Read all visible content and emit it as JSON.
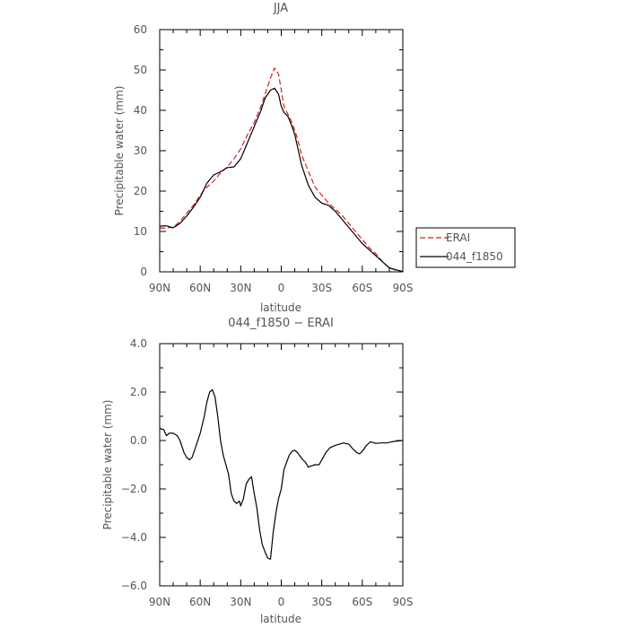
{
  "chart_data": [
    {
      "type": "line",
      "title": "JJA",
      "xlabel": "latitude",
      "ylabel": "Precipitable water (mm)",
      "xlim": [
        90,
        -90
      ],
      "ylim": [
        0,
        60
      ],
      "xticks": [
        {
          "value": 90,
          "label": "90N"
        },
        {
          "value": 60,
          "label": "60N"
        },
        {
          "value": 30,
          "label": "30N"
        },
        {
          "value": 0,
          "label": "0"
        },
        {
          "value": -30,
          "label": "30S"
        },
        {
          "value": -60,
          "label": "60S"
        },
        {
          "value": -90,
          "label": "90S"
        }
      ],
      "yticks": [
        {
          "value": 0,
          "label": "0"
        },
        {
          "value": 10,
          "label": "10"
        },
        {
          "value": 20,
          "label": "20"
        },
        {
          "value": 30,
          "label": "30"
        },
        {
          "value": 40,
          "label": "40"
        },
        {
          "value": 50,
          "label": "50"
        },
        {
          "value": 60,
          "label": "60"
        }
      ],
      "legend_position": "outside-right",
      "series": [
        {
          "name": "ERAI",
          "color": "#d62020",
          "dash": true,
          "points": [
            [
              90,
              10.8
            ],
            [
              85,
              10.9
            ],
            [
              80,
              11
            ],
            [
              75,
              12.5
            ],
            [
              70,
              14.5
            ],
            [
              65,
              16.5
            ],
            [
              60,
              19
            ],
            [
              55,
              21
            ],
            [
              50,
              22.5
            ],
            [
              45,
              24.5
            ],
            [
              40,
              26
            ],
            [
              35,
              28
            ],
            [
              30,
              30.5
            ],
            [
              25,
              34
            ],
            [
              20,
              37
            ],
            [
              15,
              41
            ],
            [
              12,
              44
            ],
            [
              8,
              48
            ],
            [
              5,
              50.5
            ],
            [
              2,
              49
            ],
            [
              0,
              45
            ],
            [
              -2,
              41
            ],
            [
              -5,
              39
            ],
            [
              -8,
              37
            ],
            [
              -10,
              35
            ],
            [
              -12,
              33
            ],
            [
              -15,
              29
            ],
            [
              -20,
              25
            ],
            [
              -25,
              21
            ],
            [
              -30,
              19
            ],
            [
              -35,
              17
            ],
            [
              -40,
              15.5
            ],
            [
              -45,
              14
            ],
            [
              -50,
              12
            ],
            [
              -55,
              10
            ],
            [
              -60,
              8
            ],
            [
              -65,
              6
            ],
            [
              -70,
              4.5
            ],
            [
              -75,
              2.5
            ],
            [
              -80,
              1
            ],
            [
              -85,
              0.4
            ],
            [
              -90,
              0.1
            ]
          ]
        },
        {
          "name": "044_f1850",
          "color": "#000000",
          "dash": false,
          "points": [
            [
              90,
              11.3
            ],
            [
              85,
              11.4
            ],
            [
              80,
              10.9
            ],
            [
              75,
              12
            ],
            [
              70,
              13.8
            ],
            [
              65,
              16
            ],
            [
              60,
              18.5
            ],
            [
              55,
              22
            ],
            [
              50,
              24
            ],
            [
              45,
              24.8
            ],
            [
              40,
              25.8
            ],
            [
              35,
              26
            ],
            [
              30,
              28
            ],
            [
              25,
              32
            ],
            [
              20,
              36
            ],
            [
              15,
              40
            ],
            [
              12,
              43
            ],
            [
              8,
              45
            ],
            [
              5,
              45.5
            ],
            [
              2,
              44
            ],
            [
              0,
              41
            ],
            [
              -2,
              39.5
            ],
            [
              -5,
              38.5
            ],
            [
              -8,
              36
            ],
            [
              -10,
              34
            ],
            [
              -12,
              31
            ],
            [
              -15,
              26.5
            ],
            [
              -20,
              21.5
            ],
            [
              -25,
              18.5
            ],
            [
              -30,
              17
            ],
            [
              -35,
              16.5
            ],
            [
              -40,
              15
            ],
            [
              -45,
              13
            ],
            [
              -50,
              11
            ],
            [
              -55,
              9
            ],
            [
              -60,
              7
            ],
            [
              -65,
              5.5
            ],
            [
              -70,
              4
            ],
            [
              -75,
              2.5
            ],
            [
              -80,
              1
            ],
            [
              -85,
              0.5
            ],
            [
              -90,
              0.1
            ]
          ]
        }
      ]
    },
    {
      "type": "line",
      "title": "044_f1850 − ERAI",
      "xlabel": "latitude",
      "ylabel": "Precipitable water (mm)",
      "xlim": [
        90,
        -90
      ],
      "ylim": [
        -6,
        4
      ],
      "xticks": [
        {
          "value": 90,
          "label": "90N"
        },
        {
          "value": 60,
          "label": "60N"
        },
        {
          "value": 30,
          "label": "30N"
        },
        {
          "value": 0,
          "label": "0"
        },
        {
          "value": -30,
          "label": "30S"
        },
        {
          "value": -60,
          "label": "60S"
        },
        {
          "value": -90,
          "label": "90S"
        }
      ],
      "yticks": [
        {
          "value": 4,
          "label": "4.0"
        },
        {
          "value": 2,
          "label": "2.0"
        },
        {
          "value": 0,
          "label": "0.0"
        },
        {
          "value": -2,
          "label": "−2.0"
        },
        {
          "value": -4,
          "label": "−4.0"
        },
        {
          "value": -6,
          "label": "−6.0"
        }
      ],
      "series": [
        {
          "color": "#000000",
          "dash": false,
          "points": [
            [
              90,
              0.5
            ],
            [
              87,
              0.45
            ],
            [
              85,
              0.2
            ],
            [
              83,
              0.3
            ],
            [
              80,
              0.3
            ],
            [
              77,
              0.2
            ],
            [
              75,
              0
            ],
            [
              72,
              -0.5
            ],
            [
              70,
              -0.7
            ],
            [
              68,
              -0.8
            ],
            [
              66,
              -0.7
            ],
            [
              63,
              -0.2
            ],
            [
              60,
              0.3
            ],
            [
              57,
              1
            ],
            [
              55,
              1.6
            ],
            [
              53,
              2
            ],
            [
              51,
              2.1
            ],
            [
              49,
              1.8
            ],
            [
              47,
              1
            ],
            [
              45,
              0
            ],
            [
              43,
              -0.6
            ],
            [
              41,
              -1
            ],
            [
              39,
              -1.4
            ],
            [
              37,
              -2.2
            ],
            [
              35,
              -2.5
            ],
            [
              33,
              -2.6
            ],
            [
              31,
              -2.5
            ],
            [
              30,
              -2.7
            ],
            [
              28,
              -2.4
            ],
            [
              26,
              -1.8
            ],
            [
              24,
              -1.6
            ],
            [
              22,
              -1.5
            ],
            [
              20,
              -2.2
            ],
            [
              18,
              -2.8
            ],
            [
              16,
              -3.7
            ],
            [
              14,
              -4.3
            ],
            [
              12,
              -4.6
            ],
            [
              10,
              -4.85
            ],
            [
              8,
              -4.9
            ],
            [
              6,
              -3.8
            ],
            [
              4,
              -3
            ],
            [
              2,
              -2.4
            ],
            [
              0,
              -2
            ],
            [
              -2,
              -1.2
            ],
            [
              -4,
              -0.9
            ],
            [
              -6,
              -0.6
            ],
            [
              -8,
              -0.45
            ],
            [
              -10,
              -0.4
            ],
            [
              -12,
              -0.5
            ],
            [
              -14,
              -0.65
            ],
            [
              -16,
              -0.8
            ],
            [
              -18,
              -0.9
            ],
            [
              -20,
              -1.1
            ],
            [
              -22,
              -1.05
            ],
            [
              -25,
              -1
            ],
            [
              -28,
              -1
            ],
            [
              -30,
              -0.8
            ],
            [
              -33,
              -0.5
            ],
            [
              -36,
              -0.3
            ],
            [
              -40,
              -0.2
            ],
            [
              -43,
              -0.15
            ],
            [
              -46,
              -0.1
            ],
            [
              -50,
              -0.15
            ],
            [
              -53,
              -0.35
            ],
            [
              -56,
              -0.5
            ],
            [
              -58,
              -0.55
            ],
            [
              -60,
              -0.45
            ],
            [
              -63,
              -0.2
            ],
            [
              -66,
              -0.05
            ],
            [
              -70,
              -0.12
            ],
            [
              -74,
              -0.1
            ],
            [
              -78,
              -0.1
            ],
            [
              -82,
              -0.05
            ],
            [
              -86,
              -0.02
            ],
            [
              -90,
              0
            ]
          ]
        }
      ]
    }
  ]
}
